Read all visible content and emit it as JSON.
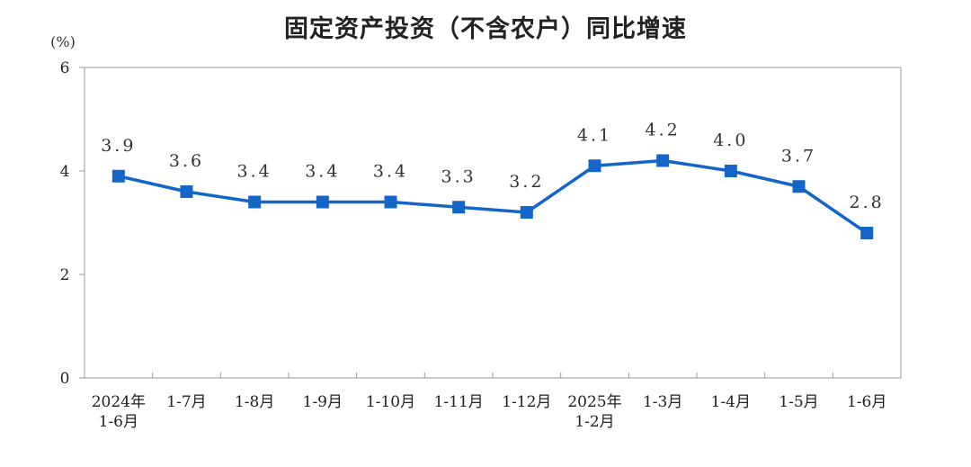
{
  "chart_data": {
    "type": "line",
    "title": "固定资产投资（不含农户）同比增速",
    "unit_label": "(%)",
    "xlabel": "",
    "ylabel": "",
    "ylim": [
      0,
      6
    ],
    "yticks": [
      "0",
      "2",
      "4",
      "6"
    ],
    "grid": false,
    "legend": "none",
    "categories": [
      [
        "2024年",
        "1-6月"
      ],
      [
        "1-7月"
      ],
      [
        "1-8月"
      ],
      [
        "1-9月"
      ],
      [
        "1-10月"
      ],
      [
        "1-11月"
      ],
      [
        "1-12月"
      ],
      [
        "2025年",
        "1-2月"
      ],
      [
        "1-3月"
      ],
      [
        "1-4月"
      ],
      [
        "1-5月"
      ],
      [
        "1-6月"
      ]
    ],
    "series": [
      {
        "values": [
          3.9,
          3.6,
          3.4,
          3.4,
          3.4,
          3.3,
          3.2,
          4.1,
          4.2,
          4.0,
          3.7,
          2.8
        ],
        "labels": [
          "3.9",
          "3.6",
          "3.4",
          "3.4",
          "3.4",
          "3.3",
          "3.2",
          "4.1",
          "4.2",
          "4.0",
          "3.7",
          "2.8"
        ],
        "color": "#1366c7"
      }
    ]
  }
}
